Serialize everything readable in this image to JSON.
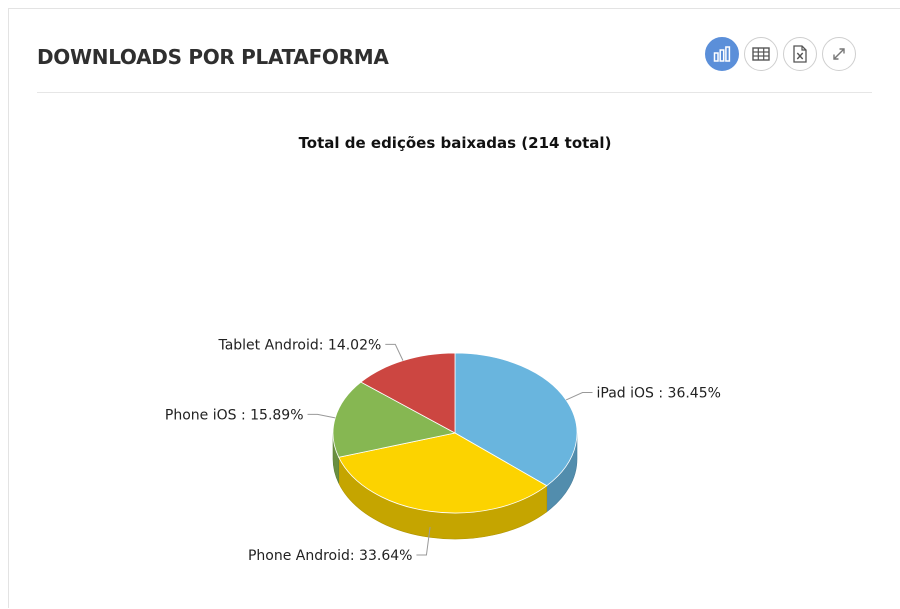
{
  "panel": {
    "title": "DOWNLOADS POR PLATAFORMA",
    "toolbar": [
      {
        "name": "chart-view-button",
        "icon": "bar-chart-icon",
        "active": true
      },
      {
        "name": "table-view-button",
        "icon": "table-icon",
        "active": false
      },
      {
        "name": "export-excel-button",
        "icon": "excel-file-icon",
        "active": false
      },
      {
        "name": "expand-button",
        "icon": "expand-icon",
        "active": false
      }
    ]
  },
  "chart_data": {
    "type": "pie",
    "title": "Total de edições baixadas (214 total)",
    "slices": [
      {
        "label": "iPad iOS : 36.45%",
        "value": 36.45,
        "color": "#69b5de"
      },
      {
        "label": "Phone Android: 33.64%",
        "value": 33.64,
        "color": "#fcd300"
      },
      {
        "label": "Phone iOS : 15.89%",
        "value": 15.89,
        "color": "#86b752"
      },
      {
        "label": "Tablet Android: 14.02%",
        "value": 14.02,
        "color": "#cc4641"
      }
    ],
    "style": "3d"
  }
}
